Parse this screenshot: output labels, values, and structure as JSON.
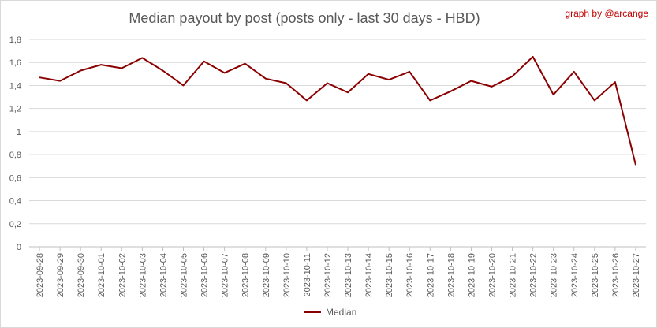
{
  "chart_data": {
    "type": "line",
    "title": "Median payout by post (posts only - last 30 days - HBD)",
    "credit": "graph by @arcange",
    "xlabel": "",
    "ylabel": "",
    "ylim": [
      0,
      1.8
    ],
    "yticks": [
      "0",
      "0,2",
      "0,4",
      "0,6",
      "0,8",
      "1",
      "1,2",
      "1,4",
      "1,6",
      "1,8"
    ],
    "grid": true,
    "legend_position": "bottom",
    "categories": [
      "2023-09-28",
      "2023-09-29",
      "2023-09-30",
      "2023-10-01",
      "2023-10-02",
      "2023-10-03",
      "2023-10-04",
      "2023-10-05",
      "2023-10-06",
      "2023-10-07",
      "2023-10-08",
      "2023-10-09",
      "2023-10-10",
      "2023-10-11",
      "2023-10-12",
      "2023-10-13",
      "2023-10-14",
      "2023-10-15",
      "2023-10-16",
      "2023-10-17",
      "2023-10-18",
      "2023-10-19",
      "2023-10-20",
      "2023-10-21",
      "2023-10-22",
      "2023-10-23",
      "2023-10-24",
      "2023-10-25",
      "2023-10-26",
      "2023-10-27"
    ],
    "series": [
      {
        "name": "Median",
        "color": "#8b0000",
        "values": [
          1.47,
          1.44,
          1.53,
          1.58,
          1.55,
          1.64,
          1.53,
          1.4,
          1.61,
          1.51,
          1.59,
          1.46,
          1.42,
          1.27,
          1.42,
          1.34,
          1.5,
          1.45,
          1.52,
          1.27,
          1.35,
          1.44,
          1.39,
          1.48,
          1.65,
          1.32,
          1.52,
          1.27,
          1.43,
          0.71
        ]
      }
    ]
  }
}
